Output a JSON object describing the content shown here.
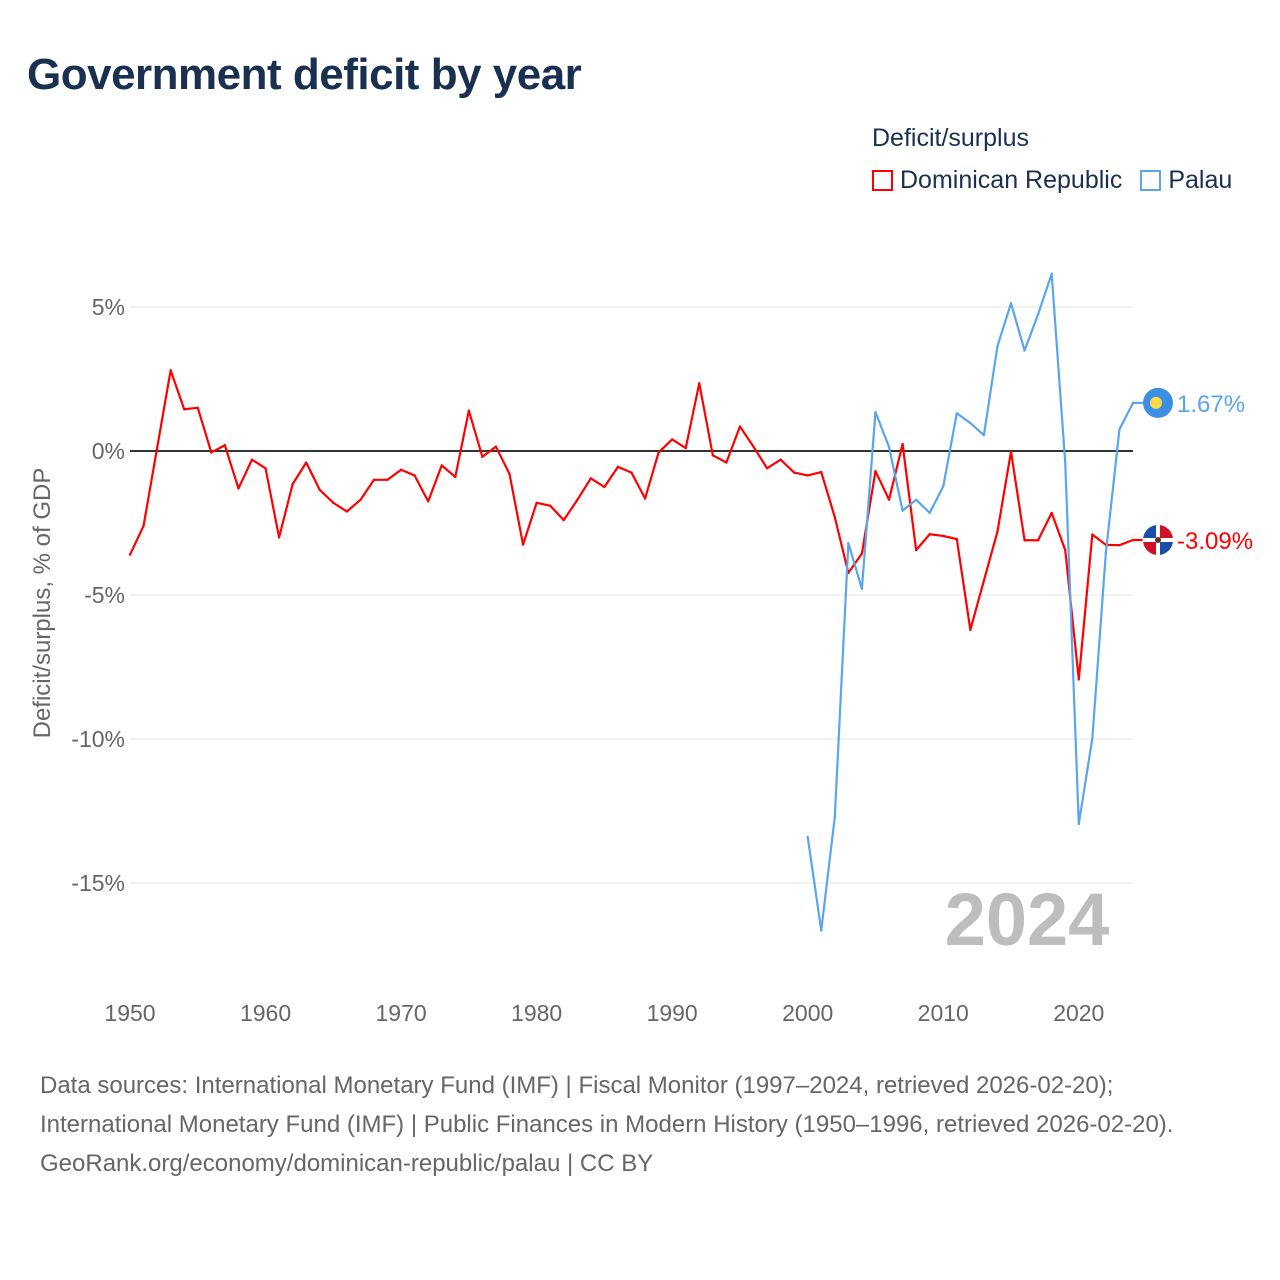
{
  "title": "Government deficit by year",
  "legend": {
    "title": "Deficit/surplus",
    "items": [
      {
        "label": "Dominican Republic",
        "color": "#ff0000"
      },
      {
        "label": "Palau",
        "color": "#5aa5ec"
      }
    ]
  },
  "year_watermark": "2024",
  "footer": {
    "sources": "Data sources: International Monetary Fund (IMF) | Fiscal Monitor (1997–2024, retrieved 2026-02-20); International Monetary Fund (IMF) | Public Finances in Modern History (1950–1996, retrieved 2026-02-20).",
    "credit": "GeoRank.org/economy/dominican-republic/palau | CC BY"
  },
  "chart_data": {
    "type": "line",
    "title": "Government deficit by year",
    "xlabel": "",
    "ylabel": "Deficit/surplus, % of GDP",
    "xlim": [
      1950,
      2024
    ],
    "ylim": [
      -17.5,
      7
    ],
    "x_ticks": [
      1950,
      1960,
      1970,
      1980,
      1990,
      2000,
      2010,
      2020
    ],
    "x_tick_labels": [
      "1950",
      "1960",
      "1970",
      "1980",
      "1990",
      "2000",
      "2010",
      "2020"
    ],
    "y_ticks": [
      5,
      0,
      -5,
      -10,
      -15
    ],
    "y_tick_labels": [
      "5%",
      "0%",
      "-5%",
      "-10%",
      "-15%"
    ],
    "grid": true,
    "legend_position": "top-right",
    "series": [
      {
        "name": "Dominican Republic",
        "color": "#ff0000",
        "end_label": "-3.09%",
        "x_start": 1950,
        "values": [
          -3.6,
          -2.6,
          0.1,
          2.8,
          1.45,
          1.5,
          -0.05,
          0.2,
          -1.3,
          -0.3,
          -0.6,
          -3.0,
          -1.15,
          -0.4,
          -1.35,
          -1.8,
          -2.1,
          -1.7,
          -1.0,
          -1.0,
          -0.65,
          -0.85,
          -1.75,
          -0.5,
          -0.9,
          1.4,
          -0.2,
          0.15,
          -0.8,
          -3.25,
          -1.8,
          -1.9,
          -2.4,
          -1.7,
          -0.95,
          -1.25,
          -0.55,
          -0.75,
          -1.65,
          -0.05,
          0.4,
          0.1,
          2.35,
          -0.15,
          -0.4,
          0.85,
          0.15,
          -0.6,
          -0.3,
          -0.75,
          -0.85,
          -0.73,
          -2.3,
          -4.23,
          -3.56,
          -0.7,
          -1.69,
          0.24,
          -3.44,
          -2.89,
          -2.95,
          -3.06,
          -6.21,
          -4.5,
          -2.8,
          -0.02,
          -3.1,
          -3.1,
          -2.15,
          -3.44,
          -7.93,
          -2.9,
          -3.26,
          -3.27,
          -3.09
        ]
      },
      {
        "name": "Palau",
        "color": "#5aa5ec",
        "end_label": "1.67%",
        "x_start": 2000,
        "values": [
          -13.4,
          -16.65,
          -12.7,
          -3.2,
          -4.78,
          1.35,
          0.14,
          -2.07,
          -1.69,
          -2.15,
          -1.23,
          1.31,
          0.97,
          0.55,
          3.64,
          5.13,
          3.49,
          4.75,
          6.15,
          -0.4,
          -12.95,
          -9.98,
          -3.52,
          0.75,
          1.67
        ]
      }
    ]
  }
}
